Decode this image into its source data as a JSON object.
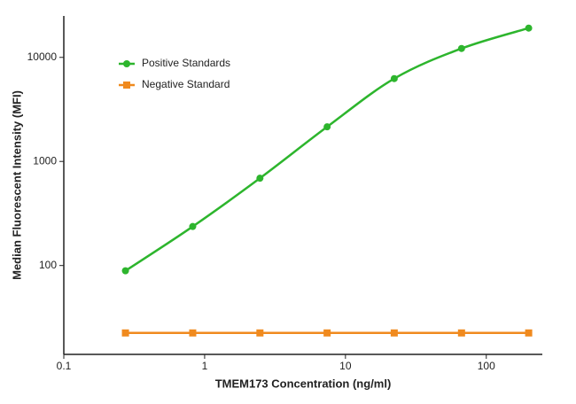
{
  "chart_data": {
    "type": "line",
    "x_label": "TMEM173 Concentration (ng/ml)",
    "y_label": "Median Fluorescent Intensity (MFI)",
    "x": [
      0.274,
      0.823,
      2.47,
      7.41,
      22.2,
      66.7,
      200
    ],
    "series": [
      {
        "name": "Positive Standards",
        "color": "#2db52d",
        "marker": "circle",
        "values": [
          89,
          237,
          690,
          2150,
          6250,
          12170,
          19100
        ]
      },
      {
        "name": "Negative Standard",
        "color": "#f08a1e",
        "marker": "square",
        "values": [
          22.5,
          22.5,
          22.5,
          22.5,
          22.5,
          22.5,
          22.5
        ]
      }
    ],
    "xlim": [
      0.1,
      250
    ],
    "ylim": [
      14,
      25000
    ],
    "xticks": [
      0.1,
      1,
      10,
      100
    ],
    "yticks": [
      100,
      1000,
      10000
    ],
    "xscale": "log",
    "yscale": "log",
    "grid": false,
    "legend": "upper left"
  }
}
